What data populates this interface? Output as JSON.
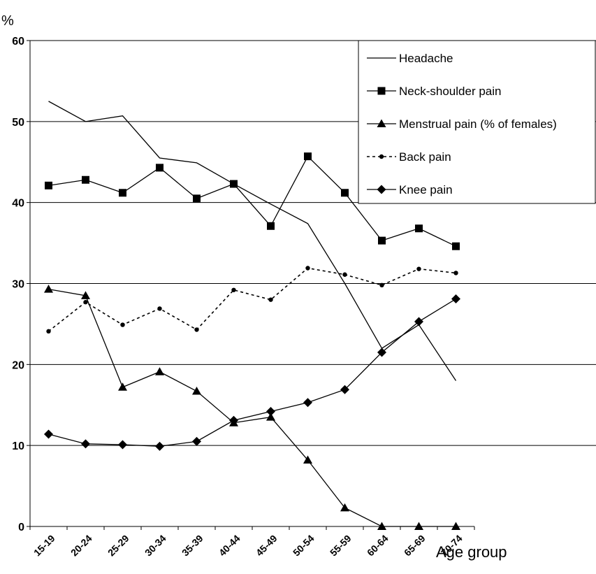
{
  "chart_data": {
    "type": "line",
    "ylabel": "%",
    "xlabel": "Age group",
    "ylim": [
      0,
      60
    ],
    "yticks": [
      0,
      10,
      20,
      30,
      40,
      50,
      60
    ],
    "grid": true,
    "legend_position": "top-right",
    "categories": [
      "15-19",
      "20-24",
      "25-29",
      "30-34",
      "35-39",
      "40-44",
      "45-49",
      "50-54",
      "55-59",
      "60-64",
      "65-69",
      "70-74"
    ],
    "series": [
      {
        "name": "Headache",
        "marker": "none",
        "dash": "solid",
        "values": [
          52.5,
          50.0,
          50.7,
          45.5,
          44.9,
          42.3,
          39.8,
          37.4,
          30.0,
          22.0,
          24.9,
          18.0
        ]
      },
      {
        "name": "Neck-shoulder pain",
        "marker": "square",
        "dash": "solid",
        "values": [
          42.1,
          42.8,
          41.2,
          44.3,
          40.5,
          42.3,
          37.1,
          45.7,
          41.2,
          35.3,
          36.8,
          34.6
        ]
      },
      {
        "name": "Menstrual pain (% of females)",
        "marker": "triangle",
        "dash": "solid",
        "values": [
          29.3,
          28.5,
          17.2,
          19.1,
          16.7,
          12.8,
          13.5,
          8.2,
          2.3,
          0,
          0,
          0
        ]
      },
      {
        "name": "Back pain",
        "marker": "circle",
        "dash": "dotted",
        "values": [
          24.1,
          27.7,
          24.9,
          26.9,
          24.3,
          29.2,
          28.0,
          31.9,
          31.1,
          29.8,
          31.8,
          31.3
        ]
      },
      {
        "name": "Knee pain",
        "marker": "diamond",
        "dash": "solid",
        "values": [
          11.4,
          10.2,
          10.1,
          9.9,
          10.5,
          13.1,
          14.2,
          15.3,
          16.9,
          21.5,
          25.3,
          28.1
        ]
      }
    ]
  }
}
